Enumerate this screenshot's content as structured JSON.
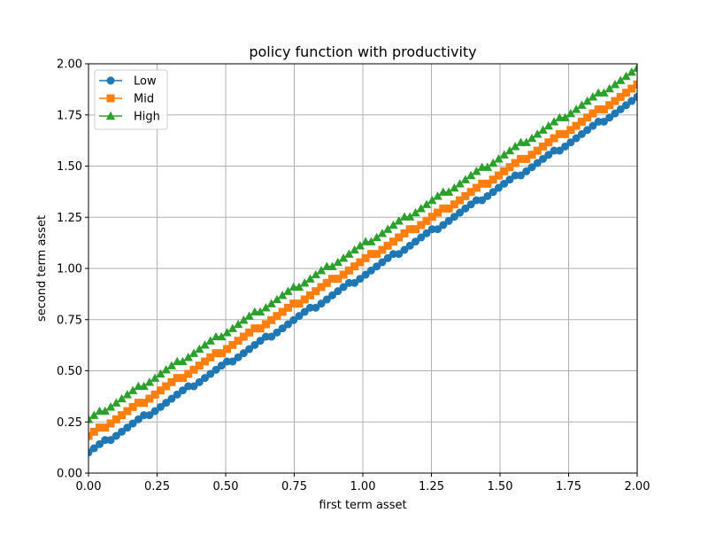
{
  "chart_data": {
    "type": "line",
    "title": "policy function with productivity",
    "xlabel": "first term asset",
    "ylabel": "second term asset",
    "xlim": [
      0.0,
      2.0
    ],
    "ylim": [
      0.0,
      2.0
    ],
    "xticks": [
      "0.00",
      "0.25",
      "0.50",
      "0.75",
      "1.00",
      "1.25",
      "1.50",
      "1.75",
      "2.00"
    ],
    "yticks": [
      "0.00",
      "0.25",
      "0.50",
      "0.75",
      "1.00",
      "1.25",
      "1.50",
      "1.75",
      "2.00"
    ],
    "grid": true,
    "legend_position": "top-left",
    "x_grid": {
      "start": 0.0,
      "end": 2.0,
      "count": 100
    },
    "series": [
      {
        "name": "Low",
        "color": "#1f77b4",
        "marker": "circle",
        "intercept": 0.1,
        "slope": 0.865
      },
      {
        "name": "Mid",
        "color": "#ff7f0e",
        "marker": "square",
        "intercept": 0.18,
        "slope": 0.855
      },
      {
        "name": "High",
        "color": "#2ca02c",
        "marker": "triangle",
        "intercept": 0.26,
        "slope": 0.855
      }
    ]
  }
}
